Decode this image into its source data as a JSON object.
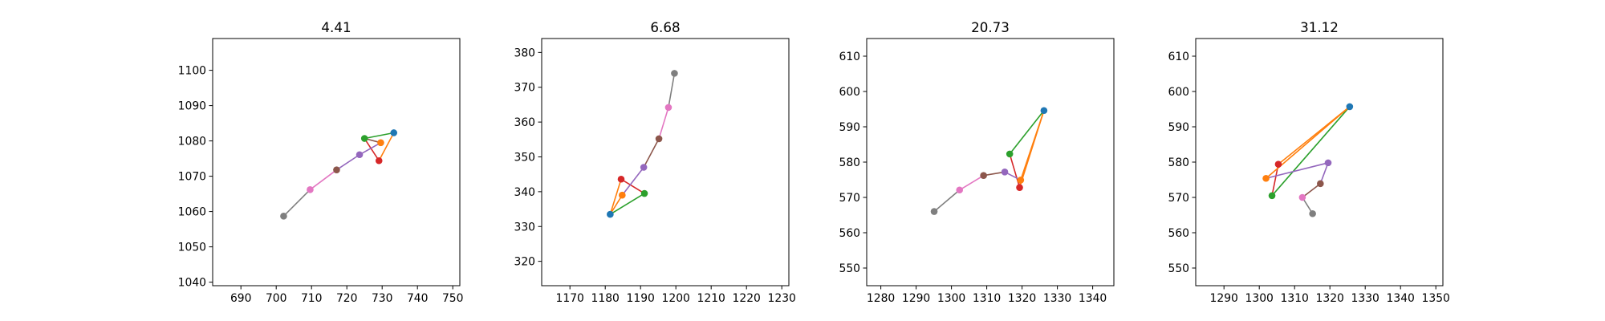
{
  "figure": {
    "background": "#ffffff"
  },
  "chart_data": [
    {
      "type": "line",
      "title": "4.41",
      "xlim": [
        682,
        752
      ],
      "ylim": [
        1039,
        1109
      ],
      "xticks": [
        690,
        700,
        710,
        720,
        730,
        740,
        750
      ],
      "yticks": [
        1040,
        1050,
        1060,
        1070,
        1080,
        1090,
        1100
      ],
      "segments": [
        {
          "from": [
            733.3,
            1082.3
          ],
          "to": [
            725.0,
            1080.7
          ],
          "color": "#2ca02c"
        },
        {
          "from": [
            725.0,
            1080.7
          ],
          "to": [
            729.6,
            1079.5
          ],
          "color": "#8c564b"
        },
        {
          "from": [
            733.3,
            1082.3
          ],
          "to": [
            729.1,
            1074.4
          ],
          "color": "#ff7f0e"
        },
        {
          "from": [
            729.1,
            1074.4
          ],
          "to": [
            725.0,
            1080.7
          ],
          "color": "#d62728"
        },
        {
          "from": [
            729.6,
            1079.5
          ],
          "to": [
            723.6,
            1076.1
          ],
          "color": "#9467bd"
        },
        {
          "from": [
            723.6,
            1076.1
          ],
          "to": [
            717.1,
            1071.8
          ],
          "color": "#9467bd"
        },
        {
          "from": [
            717.1,
            1071.8
          ],
          "to": [
            709.6,
            1066.2
          ],
          "color": "#e377c2"
        },
        {
          "from": [
            709.6,
            1066.2
          ],
          "to": [
            702.1,
            1058.7
          ],
          "color": "#7f7f7f"
        }
      ],
      "points": [
        {
          "x": 702.1,
          "y": 1058.7,
          "color": "#7f7f7f"
        },
        {
          "x": 709.6,
          "y": 1066.2,
          "color": "#e377c2"
        },
        {
          "x": 717.1,
          "y": 1071.8,
          "color": "#8c564b"
        },
        {
          "x": 723.6,
          "y": 1076.1,
          "color": "#9467bd"
        },
        {
          "x": 729.1,
          "y": 1074.4,
          "color": "#d62728"
        },
        {
          "x": 729.6,
          "y": 1079.5,
          "color": "#ff7f0e"
        },
        {
          "x": 725.0,
          "y": 1080.7,
          "color": "#2ca02c"
        },
        {
          "x": 733.3,
          "y": 1082.3,
          "color": "#1f77b4"
        }
      ]
    },
    {
      "type": "line",
      "title": "6.68",
      "xlim": [
        1162,
        1232
      ],
      "ylim": [
        313,
        384
      ],
      "xticks": [
        1170,
        1180,
        1190,
        1200,
        1210,
        1220,
        1230
      ],
      "yticks": [
        320,
        330,
        340,
        350,
        360,
        370,
        380
      ],
      "segments": [
        {
          "from": [
            1181.4,
            333.5
          ],
          "to": [
            1191.1,
            339.5
          ],
          "color": "#2ca02c"
        },
        {
          "from": [
            1191.1,
            339.5
          ],
          "to": [
            1184.5,
            343.6
          ],
          "color": "#d62728"
        },
        {
          "from": [
            1184.5,
            343.6
          ],
          "to": [
            1181.4,
            333.5
          ],
          "color": "#ff7f0e"
        },
        {
          "from": [
            1181.4,
            333.5
          ],
          "to": [
            1184.8,
            339.0
          ],
          "color": "#ff7f0e"
        },
        {
          "from": [
            1184.8,
            339.0
          ],
          "to": [
            1190.9,
            347.0
          ],
          "color": "#9467bd"
        },
        {
          "from": [
            1190.9,
            347.0
          ],
          "to": [
            1195.2,
            355.2
          ],
          "color": "#8c564b"
        },
        {
          "from": [
            1195.2,
            355.2
          ],
          "to": [
            1197.9,
            364.2
          ],
          "color": "#e377c2"
        },
        {
          "from": [
            1197.9,
            364.2
          ],
          "to": [
            1199.6,
            374.0
          ],
          "color": "#7f7f7f"
        }
      ],
      "points": [
        {
          "x": 1199.6,
          "y": 374.0,
          "color": "#7f7f7f"
        },
        {
          "x": 1197.9,
          "y": 364.2,
          "color": "#e377c2"
        },
        {
          "x": 1195.2,
          "y": 355.2,
          "color": "#8c564b"
        },
        {
          "x": 1190.9,
          "y": 347.0,
          "color": "#9467bd"
        },
        {
          "x": 1184.5,
          "y": 343.6,
          "color": "#d62728"
        },
        {
          "x": 1191.1,
          "y": 339.5,
          "color": "#2ca02c"
        },
        {
          "x": 1184.8,
          "y": 339.0,
          "color": "#ff7f0e"
        },
        {
          "x": 1181.4,
          "y": 333.5,
          "color": "#1f77b4"
        }
      ]
    },
    {
      "type": "line",
      "title": "20.73",
      "xlim": [
        1276,
        1346
      ],
      "ylim": [
        545,
        615
      ],
      "xticks": [
        1280,
        1290,
        1300,
        1310,
        1320,
        1330,
        1340
      ],
      "yticks": [
        550,
        560,
        570,
        580,
        590,
        600,
        610
      ],
      "segments": [
        {
          "from": [
            1326.2,
            594.6
          ],
          "to": [
            1316.5,
            582.3
          ],
          "color": "#2ca02c"
        },
        {
          "from": [
            1316.5,
            582.3
          ],
          "to": [
            1319.3,
            572.8
          ],
          "color": "#d62728"
        },
        {
          "from": [
            1319.3,
            572.8
          ],
          "to": [
            1319.6,
            574.9
          ],
          "color": "#d62728"
        },
        {
          "from": [
            1319.6,
            574.9
          ],
          "to": [
            1326.2,
            594.6
          ],
          "color": "#ff7f0e"
        },
        {
          "from": [
            1326.2,
            594.6
          ],
          "to": [
            1319.3,
            572.8
          ],
          "color": "#ff7f0e"
        },
        {
          "from": [
            1319.6,
            574.9
          ],
          "to": [
            1315.1,
            577.2
          ],
          "color": "#9467bd"
        },
        {
          "from": [
            1315.1,
            577.2
          ],
          "to": [
            1309.1,
            576.2
          ],
          "color": "#8c564b"
        },
        {
          "from": [
            1309.1,
            576.2
          ],
          "to": [
            1302.3,
            572.1
          ],
          "color": "#e377c2"
        },
        {
          "from": [
            1302.3,
            572.1
          ],
          "to": [
            1295.1,
            566.0
          ],
          "color": "#7f7f7f"
        }
      ],
      "points": [
        {
          "x": 1295.1,
          "y": 566.0,
          "color": "#7f7f7f"
        },
        {
          "x": 1302.3,
          "y": 572.1,
          "color": "#e377c2"
        },
        {
          "x": 1309.1,
          "y": 576.2,
          "color": "#8c564b"
        },
        {
          "x": 1315.1,
          "y": 577.2,
          "color": "#9467bd"
        },
        {
          "x": 1319.3,
          "y": 572.8,
          "color": "#d62728"
        },
        {
          "x": 1319.6,
          "y": 574.9,
          "color": "#ff7f0e"
        },
        {
          "x": 1316.5,
          "y": 582.3,
          "color": "#2ca02c"
        },
        {
          "x": 1326.2,
          "y": 594.6,
          "color": "#1f77b4"
        }
      ]
    },
    {
      "type": "line",
      "title": "31.12",
      "xlim": [
        1282,
        1352
      ],
      "ylim": [
        545,
        615
      ],
      "xticks": [
        1290,
        1300,
        1310,
        1320,
        1330,
        1340,
        1350
      ],
      "yticks": [
        550,
        560,
        570,
        580,
        590,
        600,
        610
      ],
      "segments": [
        {
          "from": [
            1325.6,
            595.7
          ],
          "to": [
            1303.6,
            570.5
          ],
          "color": "#2ca02c"
        },
        {
          "from": [
            1303.6,
            570.5
          ],
          "to": [
            1305.4,
            579.4
          ],
          "color": "#d62728"
        },
        {
          "from": [
            1305.4,
            579.4
          ],
          "to": [
            1325.6,
            595.7
          ],
          "color": "#ff7f0e"
        },
        {
          "from": [
            1325.6,
            595.7
          ],
          "to": [
            1301.9,
            575.4
          ],
          "color": "#ff7f0e"
        },
        {
          "from": [
            1301.9,
            575.4
          ],
          "to": [
            1319.5,
            579.8
          ],
          "color": "#9467bd"
        },
        {
          "from": [
            1319.5,
            579.8
          ],
          "to": [
            1317.3,
            573.9
          ],
          "color": "#9467bd"
        },
        {
          "from": [
            1317.3,
            573.9
          ],
          "to": [
            1312.2,
            570.0
          ],
          "color": "#8c564b"
        },
        {
          "from": [
            1312.2,
            570.0
          ],
          "to": [
            1315.1,
            565.4
          ],
          "color": "#7f7f7f"
        }
      ],
      "points": [
        {
          "x": 1315.1,
          "y": 565.4,
          "color": "#7f7f7f"
        },
        {
          "x": 1312.2,
          "y": 570.0,
          "color": "#e377c2"
        },
        {
          "x": 1317.3,
          "y": 573.9,
          "color": "#8c564b"
        },
        {
          "x": 1319.5,
          "y": 579.8,
          "color": "#9467bd"
        },
        {
          "x": 1305.4,
          "y": 579.4,
          "color": "#d62728"
        },
        {
          "x": 1301.9,
          "y": 575.4,
          "color": "#ff7f0e"
        },
        {
          "x": 1303.6,
          "y": 570.5,
          "color": "#2ca02c"
        },
        {
          "x": 1325.6,
          "y": 595.7,
          "color": "#1f77b4"
        }
      ]
    }
  ]
}
